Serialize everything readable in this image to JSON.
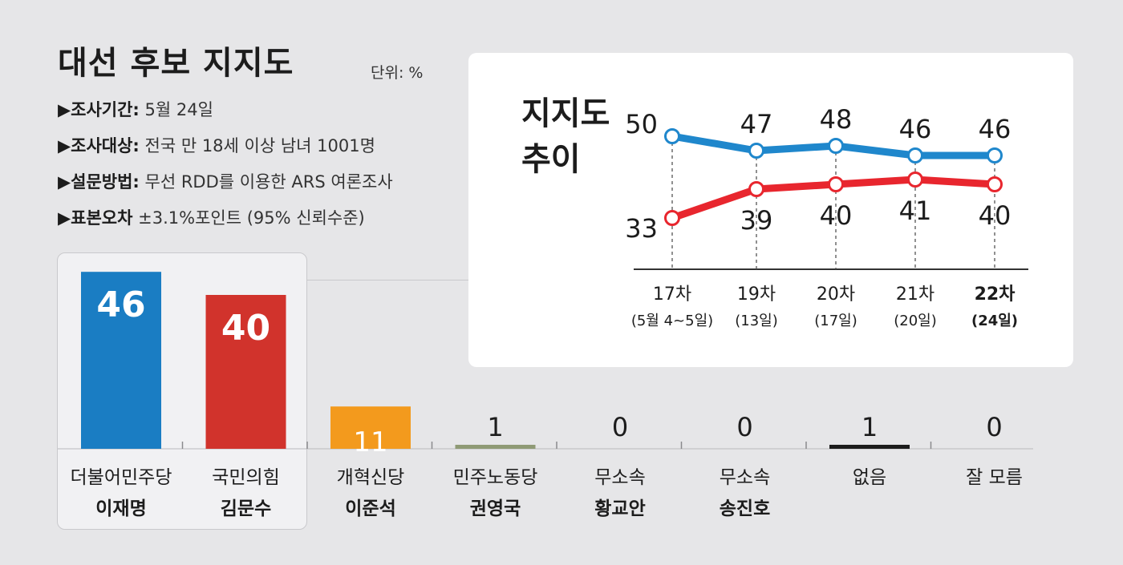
{
  "title": "대선 후보 지지도",
  "unit": "단위: %",
  "survey_info": [
    {
      "label": "▶조사기간:",
      "value": "5월 24일"
    },
    {
      "label": "▶조사대상:",
      "value": "전국 만 18세 이상 남녀 1001명"
    },
    {
      "label": "▶설문방법:",
      "value": "무선 RDD를 이용한 ARS 여론조사"
    },
    {
      "label": "▶표본오차",
      "value": "±3.1%포인트 (95% 신뢰수준)"
    }
  ],
  "chart_data": [
    {
      "type": "bar",
      "categories": [
        "더불어민주당 이재명",
        "국민의힘 김문수",
        "개혁신당 이준석",
        "민주노동당 권영국",
        "무소속 황교안",
        "무소속 송진호",
        "없음",
        "잘 모름"
      ],
      "parties": [
        "더불어민주당",
        "국민의힘",
        "개혁신당",
        "민주노동당",
        "무소속",
        "무소속",
        "없음",
        "잘 모름"
      ],
      "persons": [
        "이재명",
        "김문수",
        "이준석",
        "권영국",
        "황교안",
        "송진호",
        "",
        ""
      ],
      "values": [
        46,
        40,
        11,
        1,
        0,
        0,
        1,
        0
      ],
      "value_labels": [
        "46",
        "40",
        "11",
        "1",
        "0",
        "0",
        "1",
        "0"
      ],
      "colors": [
        "#1a7dc3",
        "#d1332c",
        "#f39a1d",
        "#8f9a75",
        "#1c1c1c",
        "#1c1c1c",
        "#1c1c1c",
        "#1c1c1c"
      ],
      "highlighted": [
        "더불어민주당 이재명",
        "국민의힘 김문수"
      ]
    },
    {
      "type": "line",
      "title": "지지도 추이",
      "title_lines": [
        "지지도",
        "추이"
      ],
      "x": [
        "17차",
        "19차",
        "20차",
        "21차",
        "22차"
      ],
      "x_sub": [
        "(5월 4~5일)",
        "(13일)",
        "(17일)",
        "(20일)",
        "(24일)"
      ],
      "bold_last": true,
      "series": [
        {
          "values": [
            50,
            47,
            48,
            46,
            46
          ],
          "color": "#1f87cc"
        },
        {
          "values": [
            33,
            39,
            40,
            41,
            40
          ],
          "color": "#e8262e"
        }
      ],
      "ylim": [
        28,
        53
      ]
    }
  ]
}
